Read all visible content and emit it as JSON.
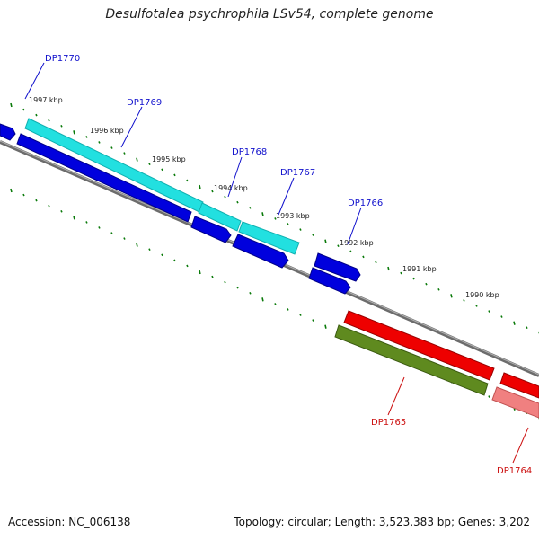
{
  "title": "Desulfotalea psychrophila LSv54, complete genome",
  "footer": {
    "accession": "Accession: NC_006138",
    "info": "Topology: circular; Length: 3,523,383 bp; Genes: 3,202"
  },
  "scale_labels": [
    "1997 kbp",
    "1996 kbp",
    "1995 kbp",
    "1994 kbp",
    "1993 kbp",
    "1992 kbp",
    "1991 kbp",
    "1990 kbp"
  ],
  "gene_labels": [
    "DP1770",
    "DP1769",
    "DP1768",
    "DP1767",
    "DP1766",
    "DP1765",
    "DP1764"
  ],
  "colors": {
    "backbone": "#7f7f7f",
    "blue_gene": "#0000dd",
    "cyan_gene": "#22e0e0",
    "red_gene": "#ee0000",
    "olive_gene": "#5f8a1f",
    "pink_gene": "#f08080",
    "tick": "#0a7a0a",
    "label_top": "#1010cc",
    "label_bottom": "#cc1010"
  }
}
